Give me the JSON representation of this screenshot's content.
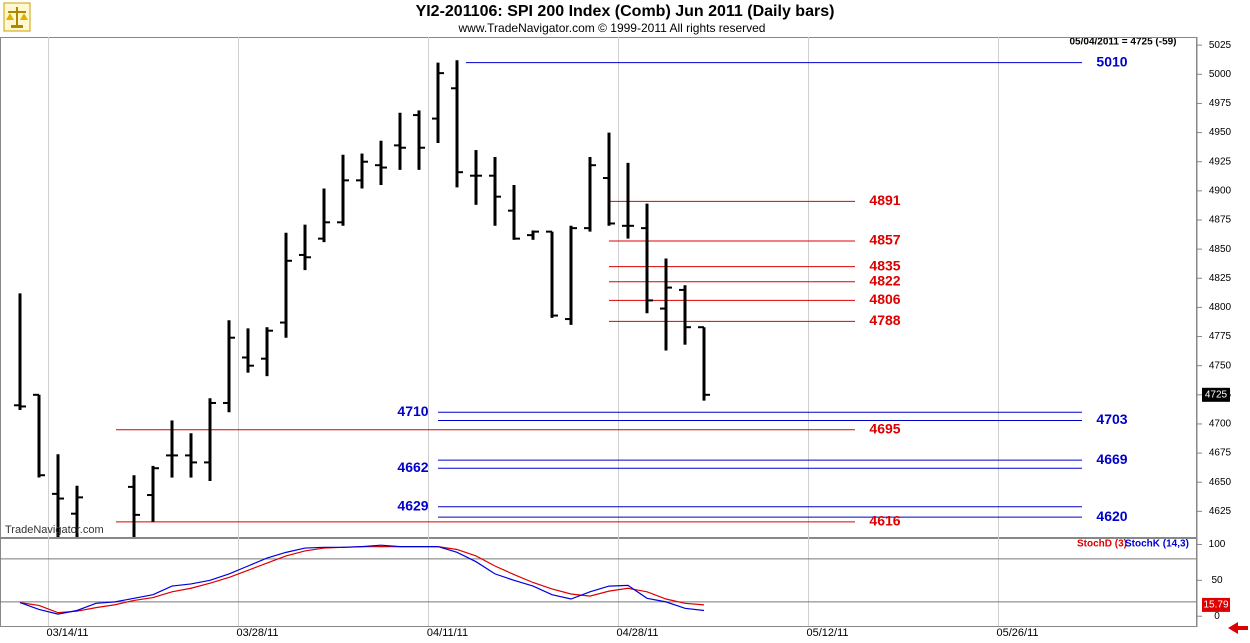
{
  "header": {
    "title": "YI2-201106:  SPI 200 Index (Comb) Jun 2011  (Daily bars)",
    "subtitle": "www.TradeNavigator.com © 1999-2011 All rights reserved",
    "quote": "05/04/2011 = 4725 (-59)",
    "watermark": "TradeNavigator.com"
  },
  "chart_data": [
    {
      "type": "ohlc",
      "color": "#000000",
      "ylim": [
        4603,
        5032
      ],
      "yticks": [
        4625,
        4650,
        4675,
        4700,
        4725,
        4750,
        4775,
        4800,
        4825,
        4850,
        4875,
        4900,
        4925,
        4950,
        4975,
        5000,
        5025
      ],
      "open": [
        4716,
        4725,
        4640,
        4623,
        null,
        null,
        4646,
        4639,
        4673,
        4673,
        4667,
        4718,
        4757,
        4756,
        4787,
        4845,
        4859,
        4873,
        4909,
        4922,
        4939,
        4965,
        4962,
        4988,
        4913,
        4913,
        4883,
        4862,
        4865,
        4790,
        4868,
        4911,
        4870,
        4868,
        4799,
        4815,
        4783,
        null,
        null,
        null,
        null,
        null,
        null,
        null,
        null,
        null,
        null,
        null,
        null,
        null,
        null,
        null,
        null,
        null,
        null,
        null,
        null,
        null,
        null,
        null,
        null,
        null
      ],
      "high": [
        4812,
        4725,
        4674,
        4647,
        null,
        null,
        4656,
        4664,
        4703,
        4692,
        4722,
        4789,
        4782,
        4783,
        4864,
        4871,
        4902,
        4931,
        4932,
        4943,
        4967,
        4969,
        5010,
        5012,
        4935,
        4929,
        4905,
        4866,
        4865,
        4870,
        4929,
        4950,
        4924,
        4889,
        4842,
        4819,
        4783,
        null,
        null,
        null,
        null,
        null,
        null,
        null,
        null,
        null,
        null,
        null,
        null,
        null,
        null,
        null,
        null,
        null,
        null,
        null,
        null,
        null,
        null,
        null,
        null,
        null
      ],
      "low": [
        4712,
        4654,
        4595,
        4595,
        null,
        null,
        4600,
        4616,
        4654,
        4654,
        4651,
        4710,
        4744,
        4741,
        4774,
        4832,
        4856,
        4870,
        4902,
        4905,
        4918,
        4918,
        4941,
        4903,
        4888,
        4870,
        4858,
        4858,
        4791,
        4785,
        4865,
        4870,
        4859,
        4795,
        4763,
        4768,
        4720,
        null,
        null,
        null,
        null,
        null,
        null,
        null,
        null,
        null,
        null,
        null,
        null,
        null,
        null,
        null,
        null,
        null,
        null,
        null,
        null,
        null,
        null,
        null,
        null,
        null
      ],
      "close": [
        4715,
        4656,
        4636,
        4637,
        null,
        null,
        4622,
        4662,
        4673,
        4667,
        4718,
        4774,
        4750,
        4780,
        4840,
        4843,
        4873,
        4909,
        4925,
        4920,
        4937,
        4937,
        5001,
        4916,
        4913,
        4895,
        4859,
        4865,
        4793,
        4868,
        4922,
        4872,
        4870,
        4806,
        4817,
        4783,
        4725,
        null,
        null,
        null,
        null,
        null,
        null,
        null,
        null,
        null,
        null,
        null,
        null,
        null,
        null,
        null,
        null,
        null,
        null,
        null,
        null,
        null,
        null,
        null,
        null,
        null
      ],
      "levels": [
        {
          "value": 5010,
          "color": "#0000cc"
        },
        {
          "value": 4891,
          "color": "#dd0000"
        },
        {
          "value": 4857,
          "color": "#dd0000"
        },
        {
          "value": 4835,
          "color": "#dd0000"
        },
        {
          "value": 4822,
          "color": "#dd0000"
        },
        {
          "value": 4806,
          "color": "#dd0000"
        },
        {
          "value": 4788,
          "color": "#dd0000"
        },
        {
          "value": 4710,
          "color": "#0000cc"
        },
        {
          "value": 4703,
          "color": "#0000cc"
        },
        {
          "value": 4695,
          "color": "#dd0000"
        },
        {
          "value": 4669,
          "color": "#0000cc"
        },
        {
          "value": 4662,
          "color": "#0000cc"
        },
        {
          "value": 4629,
          "color": "#0000cc"
        },
        {
          "value": 4620,
          "color": "#0000cc"
        },
        {
          "value": 4616,
          "color": "#dd0000"
        }
      ]
    },
    {
      "type": "line",
      "categories": [
        null,
        null,
        "03/14/11",
        null,
        null,
        null,
        null,
        null,
        null,
        null,
        null,
        null,
        "03/28/11",
        null,
        null,
        null,
        null,
        null,
        null,
        null,
        null,
        null,
        "04/11/11",
        null,
        null,
        null,
        null,
        null,
        null,
        null,
        null,
        null,
        "04/28/11",
        null,
        null,
        null,
        null,
        null,
        null,
        null,
        null,
        null,
        "05/12/11",
        null,
        null,
        null,
        null,
        null,
        null,
        null,
        null,
        null,
        "05/26/11",
        null,
        null,
        null,
        null,
        null,
        null,
        null,
        null,
        null
      ],
      "ylim": [
        -15,
        109
      ],
      "yticks": [
        0,
        50,
        100
      ],
      "hlines": [
        80,
        20
      ],
      "series": [
        {
          "name": "StochD (3)",
          "color": "#dd0000",
          "values": [
            19,
            15,
            5,
            7,
            12,
            16,
            22,
            26,
            34,
            39,
            46,
            54,
            64,
            74,
            84,
            91,
            95,
            96,
            97,
            97,
            97,
            97,
            97,
            93,
            84,
            70,
            58,
            47,
            38,
            31,
            28,
            35,
            39,
            34,
            24,
            18,
            15.79,
            null,
            null,
            null,
            null,
            null,
            null,
            null,
            null,
            null,
            null,
            null,
            null,
            null,
            null,
            null,
            null,
            null,
            null,
            null,
            null,
            null,
            null,
            null,
            null,
            null
          ]
        },
        {
          "name": "StochK (14,3)",
          "color": "#0000dd",
          "values": [
            19,
            9.5,
            3,
            8,
            18,
            20,
            25,
            30,
            42,
            45,
            50,
            59,
            70,
            81,
            89,
            95,
            96,
            96,
            97,
            99,
            97,
            97,
            97,
            89,
            76,
            59,
            50,
            42,
            30,
            24,
            34,
            42,
            43,
            25,
            20,
            11,
            8,
            null,
            null,
            null,
            null,
            null,
            null,
            null,
            null,
            null,
            null,
            null,
            null,
            null,
            null,
            null,
            null,
            null,
            null,
            null,
            null,
            null,
            null,
            null,
            null,
            null
          ]
        }
      ]
    }
  ]
}
